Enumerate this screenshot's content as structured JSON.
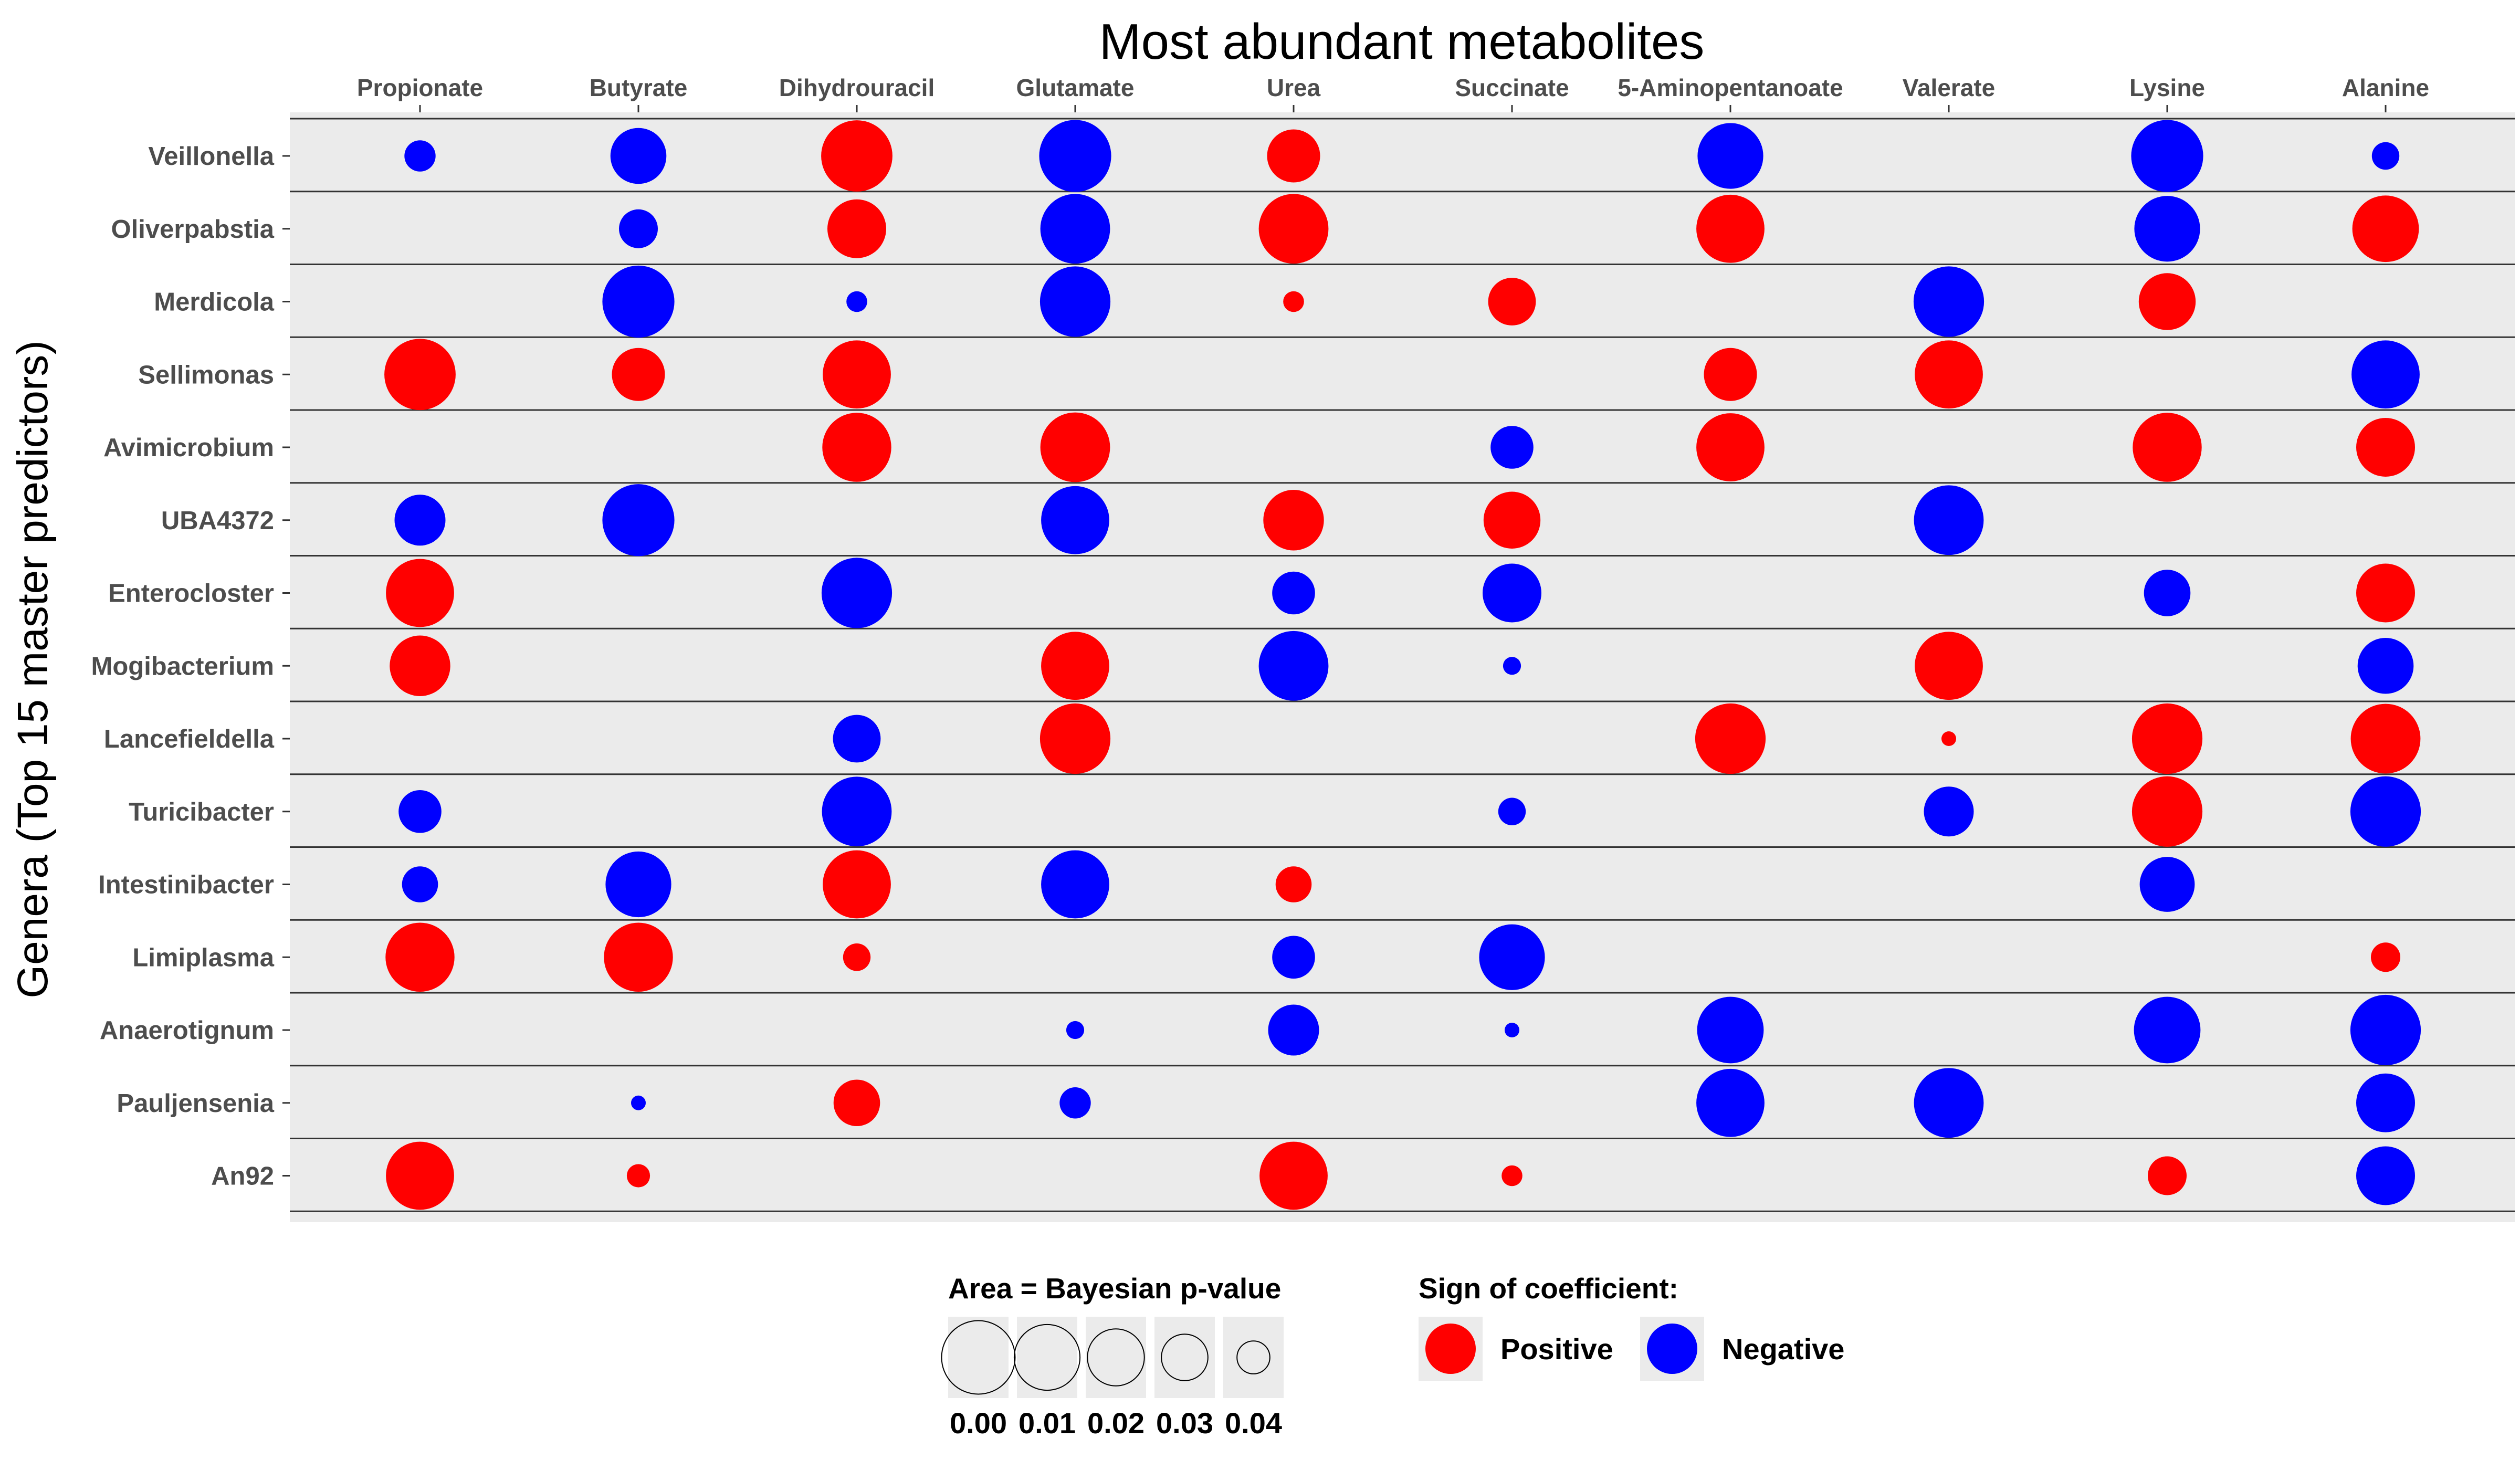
{
  "chart_data": {
    "type": "bubble-grid",
    "title": "Most abundant metabolites",
    "ylabel": "Genera (Top 15 master predictors)",
    "columns": [
      "Propionate",
      "Butyrate",
      "Dihydrouracil",
      "Glutamate",
      "Urea",
      "Succinate",
      "5-Aminopentanoate",
      "Valerate",
      "Lysine",
      "Alanine"
    ],
    "rows": [
      "Veillonella",
      "Oliverpabstia",
      "Merdicola",
      "Sellimonas",
      "Avimicrobium",
      "UBA4372",
      "Enterocloster",
      "Mogibacterium",
      "Lancefieldella",
      "Turicibacter",
      "Intestinibacter",
      "Limiplasma",
      "Anaerotignum",
      "Pauljensenia",
      "An92"
    ],
    "pvalue_min": 0.0,
    "pvalue_max": 0.05,
    "sign_colors": {
      "Positive": "#ff0000",
      "Negative": "#0000ff"
    },
    "points": [
      {
        "row": "Veillonella",
        "col": "Propionate",
        "sign": "Negative",
        "p": 0.041
      },
      {
        "row": "Veillonella",
        "col": "Butyrate",
        "sign": "Negative",
        "p": 0.021
      },
      {
        "row": "Veillonella",
        "col": "Dihydrouracil",
        "sign": "Positive",
        "p": 0.003
      },
      {
        "row": "Veillonella",
        "col": "Glutamate",
        "sign": "Negative",
        "p": 0.002
      },
      {
        "row": "Veillonella",
        "col": "Urea",
        "sign": "Positive",
        "p": 0.024
      },
      {
        "row": "Veillonella",
        "col": "5-Aminopentanoate",
        "sign": "Negative",
        "p": 0.01
      },
      {
        "row": "Veillonella",
        "col": "Lysine",
        "sign": "Negative",
        "p": 0.002
      },
      {
        "row": "Veillonella",
        "col": "Alanine",
        "sign": "Negative",
        "p": 0.043
      },
      {
        "row": "Oliverpabstia",
        "col": "Butyrate",
        "sign": "Negative",
        "p": 0.036
      },
      {
        "row": "Oliverpabstia",
        "col": "Dihydrouracil",
        "sign": "Positive",
        "p": 0.018
      },
      {
        "row": "Oliverpabstia",
        "col": "Glutamate",
        "sign": "Negative",
        "p": 0.005
      },
      {
        "row": "Oliverpabstia",
        "col": "Urea",
        "sign": "Positive",
        "p": 0.005
      },
      {
        "row": "Oliverpabstia",
        "col": "5-Aminopentanoate",
        "sign": "Positive",
        "p": 0.007
      },
      {
        "row": "Oliverpabstia",
        "col": "Lysine",
        "sign": "Negative",
        "p": 0.01
      },
      {
        "row": "Oliverpabstia",
        "col": "Alanine",
        "sign": "Positive",
        "p": 0.009
      },
      {
        "row": "Merdicola",
        "col": "Butyrate",
        "sign": "Negative",
        "p": 0.002
      },
      {
        "row": "Merdicola",
        "col": "Dihydrouracil",
        "sign": "Negative",
        "p": 0.046
      },
      {
        "row": "Merdicola",
        "col": "Glutamate",
        "sign": "Negative",
        "p": 0.004
      },
      {
        "row": "Merdicola",
        "col": "Urea",
        "sign": "Positive",
        "p": 0.046
      },
      {
        "row": "Merdicola",
        "col": "Succinate",
        "sign": "Positive",
        "p": 0.029
      },
      {
        "row": "Merdicola",
        "col": "Valerate",
        "sign": "Negative",
        "p": 0.004
      },
      {
        "row": "Merdicola",
        "col": "Lysine",
        "sign": "Positive",
        "p": 0.02
      },
      {
        "row": "Sellimonas",
        "col": "Propionate",
        "sign": "Positive",
        "p": 0.003
      },
      {
        "row": "Sellimonas",
        "col": "Butyrate",
        "sign": "Positive",
        "p": 0.024
      },
      {
        "row": "Sellimonas",
        "col": "Dihydrouracil",
        "sign": "Positive",
        "p": 0.007
      },
      {
        "row": "Sellimonas",
        "col": "5-Aminopentanoate",
        "sign": "Positive",
        "p": 0.024
      },
      {
        "row": "Sellimonas",
        "col": "Valerate",
        "sign": "Positive",
        "p": 0.007
      },
      {
        "row": "Sellimonas",
        "col": "Alanine",
        "sign": "Negative",
        "p": 0.007
      },
      {
        "row": "Avimicrobium",
        "col": "Dihydrouracil",
        "sign": "Positive",
        "p": 0.006
      },
      {
        "row": "Avimicrobium",
        "col": "Glutamate",
        "sign": "Positive",
        "p": 0.005
      },
      {
        "row": "Avimicrobium",
        "col": "Succinate",
        "sign": "Negative",
        "p": 0.033
      },
      {
        "row": "Avimicrobium",
        "col": "5-Aminopentanoate",
        "sign": "Positive",
        "p": 0.007
      },
      {
        "row": "Avimicrobium",
        "col": "Lysine",
        "sign": "Positive",
        "p": 0.006
      },
      {
        "row": "Avimicrobium",
        "col": "Alanine",
        "sign": "Positive",
        "p": 0.018
      },
      {
        "row": "UBA4372",
        "col": "Propionate",
        "sign": "Negative",
        "p": 0.026
      },
      {
        "row": "UBA4372",
        "col": "Butyrate",
        "sign": "Negative",
        "p": 0.002
      },
      {
        "row": "UBA4372",
        "col": "Glutamate",
        "sign": "Negative",
        "p": 0.007
      },
      {
        "row": "UBA4372",
        "col": "Urea",
        "sign": "Positive",
        "p": 0.016
      },
      {
        "row": "UBA4372",
        "col": "Succinate",
        "sign": "Positive",
        "p": 0.02
      },
      {
        "row": "UBA4372",
        "col": "Valerate",
        "sign": "Negative",
        "p": 0.005
      },
      {
        "row": "Enterocloster",
        "col": "Propionate",
        "sign": "Positive",
        "p": 0.007
      },
      {
        "row": "Enterocloster",
        "col": "Dihydrouracil",
        "sign": "Negative",
        "p": 0.004
      },
      {
        "row": "Enterocloster",
        "col": "Urea",
        "sign": "Negative",
        "p": 0.033
      },
      {
        "row": "Enterocloster",
        "col": "Succinate",
        "sign": "Negative",
        "p": 0.018
      },
      {
        "row": "Enterocloster",
        "col": "Lysine",
        "sign": "Negative",
        "p": 0.03
      },
      {
        "row": "Enterocloster",
        "col": "Alanine",
        "sign": "Positive",
        "p": 0.018
      },
      {
        "row": "Mogibacterium",
        "col": "Propionate",
        "sign": "Positive",
        "p": 0.016
      },
      {
        "row": "Mogibacterium",
        "col": "Glutamate",
        "sign": "Positive",
        "p": 0.007
      },
      {
        "row": "Mogibacterium",
        "col": "Urea",
        "sign": "Negative",
        "p": 0.005
      },
      {
        "row": "Mogibacterium",
        "col": "Succinate",
        "sign": "Negative",
        "p": 0.047
      },
      {
        "row": "Mogibacterium",
        "col": "Valerate",
        "sign": "Positive",
        "p": 0.007
      },
      {
        "row": "Mogibacterium",
        "col": "Alanine",
        "sign": "Negative",
        "p": 0.021
      },
      {
        "row": "Lancefieldella",
        "col": "Dihydrouracil",
        "sign": "Negative",
        "p": 0.029
      },
      {
        "row": "Lancefieldella",
        "col": "Glutamate",
        "sign": "Positive",
        "p": 0.004
      },
      {
        "row": "Lancefieldella",
        "col": "5-Aminopentanoate",
        "sign": "Positive",
        "p": 0.004
      },
      {
        "row": "Lancefieldella",
        "col": "Valerate",
        "sign": "Positive",
        "p": 0.048
      },
      {
        "row": "Lancefieldella",
        "col": "Lysine",
        "sign": "Positive",
        "p": 0.004
      },
      {
        "row": "Lancefieldella",
        "col": "Alanine",
        "sign": "Positive",
        "p": 0.005
      },
      {
        "row": "Turicibacter",
        "col": "Propionate",
        "sign": "Negative",
        "p": 0.033
      },
      {
        "row": "Turicibacter",
        "col": "Dihydrouracil",
        "sign": "Negative",
        "p": 0.005
      },
      {
        "row": "Turicibacter",
        "col": "Succinate",
        "sign": "Negative",
        "p": 0.043
      },
      {
        "row": "Turicibacter",
        "col": "Valerate",
        "sign": "Negative",
        "p": 0.027
      },
      {
        "row": "Turicibacter",
        "col": "Lysine",
        "sign": "Positive",
        "p": 0.004
      },
      {
        "row": "Turicibacter",
        "col": "Alanine",
        "sign": "Negative",
        "p": 0.004
      },
      {
        "row": "Intestinibacter",
        "col": "Propionate",
        "sign": "Negative",
        "p": 0.038
      },
      {
        "row": "Intestinibacter",
        "col": "Butyrate",
        "sign": "Negative",
        "p": 0.01
      },
      {
        "row": "Intestinibacter",
        "col": "Dihydrouracil",
        "sign": "Positive",
        "p": 0.007
      },
      {
        "row": "Intestinibacter",
        "col": "Glutamate",
        "sign": "Negative",
        "p": 0.007
      },
      {
        "row": "Intestinibacter",
        "col": "Urea",
        "sign": "Positive",
        "p": 0.038
      },
      {
        "row": "Intestinibacter",
        "col": "Lysine",
        "sign": "Negative",
        "p": 0.022
      },
      {
        "row": "Limiplasma",
        "col": "Propionate",
        "sign": "Positive",
        "p": 0.006
      },
      {
        "row": "Limiplasma",
        "col": "Butyrate",
        "sign": "Positive",
        "p": 0.006
      },
      {
        "row": "Limiplasma",
        "col": "Dihydrouracil",
        "sign": "Positive",
        "p": 0.043
      },
      {
        "row": "Limiplasma",
        "col": "Urea",
        "sign": "Negative",
        "p": 0.033
      },
      {
        "row": "Limiplasma",
        "col": "Succinate",
        "sign": "Negative",
        "p": 0.01
      },
      {
        "row": "Limiplasma",
        "col": "Alanine",
        "sign": "Positive",
        "p": 0.042
      },
      {
        "row": "Anaerotignum",
        "col": "Glutamate",
        "sign": "Negative",
        "p": 0.047
      },
      {
        "row": "Anaerotignum",
        "col": "Urea",
        "sign": "Negative",
        "p": 0.026
      },
      {
        "row": "Anaerotignum",
        "col": "Succinate",
        "sign": "Negative",
        "p": 0.048
      },
      {
        "row": "Anaerotignum",
        "col": "5-Aminopentanoate",
        "sign": "Negative",
        "p": 0.009
      },
      {
        "row": "Anaerotignum",
        "col": "Lysine",
        "sign": "Negative",
        "p": 0.009
      },
      {
        "row": "Anaerotignum",
        "col": "Alanine",
        "sign": "Negative",
        "p": 0.004
      },
      {
        "row": "Pauljensenia",
        "col": "Butyrate",
        "sign": "Negative",
        "p": 0.048
      },
      {
        "row": "Pauljensenia",
        "col": "Dihydrouracil",
        "sign": "Positive",
        "p": 0.03
      },
      {
        "row": "Pauljensenia",
        "col": "Glutamate",
        "sign": "Negative",
        "p": 0.041
      },
      {
        "row": "Pauljensenia",
        "col": "5-Aminopentanoate",
        "sign": "Negative",
        "p": 0.007
      },
      {
        "row": "Pauljensenia",
        "col": "Valerate",
        "sign": "Negative",
        "p": 0.005
      },
      {
        "row": "Pauljensenia",
        "col": "Alanine",
        "sign": "Negative",
        "p": 0.018
      },
      {
        "row": "An92",
        "col": "Propionate",
        "sign": "Positive",
        "p": 0.007
      },
      {
        "row": "An92",
        "col": "Butyrate",
        "sign": "Positive",
        "p": 0.045
      },
      {
        "row": "An92",
        "col": "Urea",
        "sign": "Positive",
        "p": 0.007
      },
      {
        "row": "An92",
        "col": "Succinate",
        "sign": "Positive",
        "p": 0.046
      },
      {
        "row": "An92",
        "col": "Lysine",
        "sign": "Positive",
        "p": 0.036
      },
      {
        "row": "An92",
        "col": "Alanine",
        "sign": "Negative",
        "p": 0.018
      }
    ],
    "legend": {
      "size_title": "Area = Bayesian p-value",
      "size_values": [
        0.0,
        0.01,
        0.02,
        0.03,
        0.04
      ],
      "size_labels": [
        "0.00",
        "0.01",
        "0.02",
        "0.03",
        "0.04"
      ],
      "color_title": "Sign of coefficient:",
      "color_labels": [
        "Positive",
        "Negative"
      ]
    }
  }
}
